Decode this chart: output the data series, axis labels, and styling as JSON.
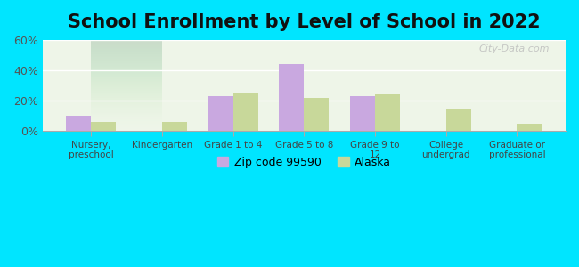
{
  "title": "School Enrollment by Level of School in 2022",
  "categories": [
    "Nursery,\npreschool",
    "Kindergarten",
    "Grade 1 to 4",
    "Grade 5 to 8",
    "Grade 9 to\n12",
    "College\nundergrad",
    "Graduate or\nprofessional"
  ],
  "zip_values": [
    10,
    0,
    23,
    44,
    23,
    0,
    0
  ],
  "alaska_values": [
    6,
    6,
    25,
    22,
    24,
    15,
    5
  ],
  "zip_color": "#c9a8e0",
  "alaska_color": "#c8d89a",
  "background_outer": "#00e5ff",
  "background_inner_top": "#f0f8f0",
  "background_inner_bottom": "#e8f5e8",
  "ylim": [
    0,
    60
  ],
  "yticks": [
    0,
    20,
    40,
    60
  ],
  "ytick_labels": [
    "0%",
    "20%",
    "40%",
    "60%"
  ],
  "title_fontsize": 15,
  "legend_labels": [
    "Zip code 99590",
    "Alaska"
  ],
  "bar_width": 0.35,
  "watermark": "City-Data.com"
}
